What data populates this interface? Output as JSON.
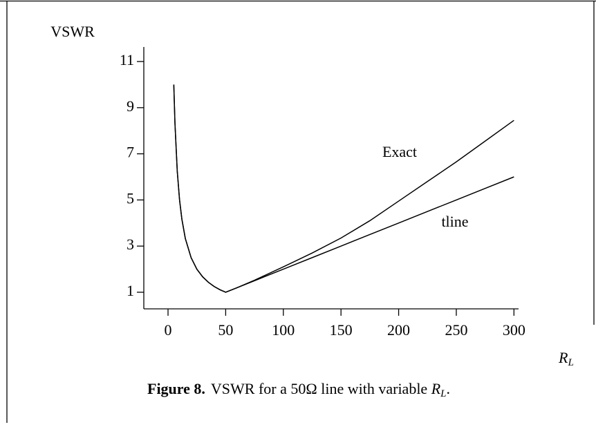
{
  "chart_data": {
    "type": "line",
    "y_label": "VSWR",
    "x_label": {
      "symbol": "R",
      "subscript": "L"
    },
    "x": [
      5,
      6,
      8,
      10,
      12,
      15,
      20,
      25,
      30,
      35,
      40,
      45,
      50,
      60,
      75,
      100,
      125,
      150,
      175,
      200,
      225,
      250,
      275,
      300
    ],
    "series": [
      {
        "name": "Exact",
        "color": "#000000",
        "values": [
          10,
          8.33,
          6.25,
          5,
          4.17,
          3.33,
          2.5,
          2,
          1.67,
          1.43,
          1.25,
          1.11,
          1,
          1.2,
          1.52,
          2.1,
          2.7,
          3.35,
          4.1,
          4.95,
          5.8,
          6.65,
          7.55,
          8.45
        ]
      },
      {
        "name": "tline",
        "color": "#000000",
        "values": [
          10,
          8.33,
          6.25,
          5,
          4.17,
          3.33,
          2.5,
          2,
          1.67,
          1.43,
          1.25,
          1.11,
          1,
          1.2,
          1.5,
          2,
          2.5,
          3,
          3.5,
          4,
          4.5,
          5,
          5.5,
          6
        ]
      }
    ],
    "xlim": [
      -21,
      304
    ],
    "ylim": [
      0.28,
      11.63
    ],
    "xticks": [
      0,
      50,
      100,
      150,
      200,
      250,
      300
    ],
    "yticks": [
      1,
      3,
      5,
      7,
      9,
      11
    ],
    "caption": {
      "label": "Figure 8.",
      "text": "VSWR for a 50Ω line with variable ",
      "symbol": "R",
      "subscript": "L",
      "end": "."
    }
  }
}
